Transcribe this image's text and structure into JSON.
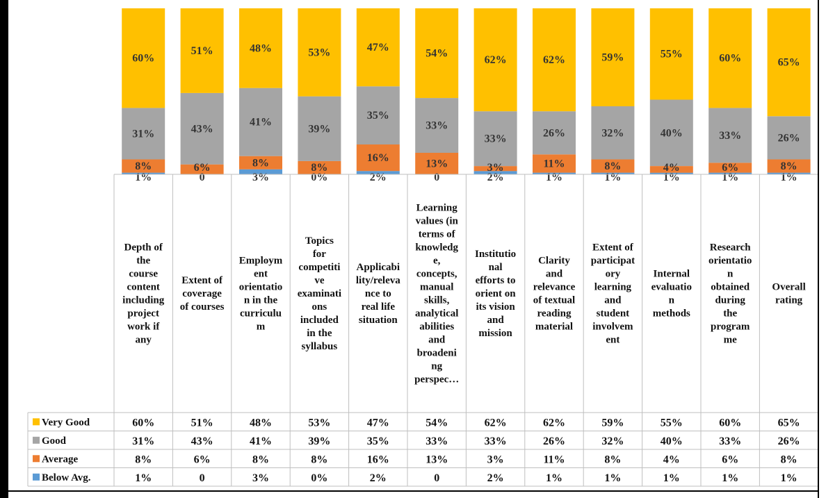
{
  "chart_data": {
    "type": "bar",
    "stacked": true,
    "ylim": [
      0,
      100
    ],
    "grid": false,
    "legend_placement": "data-table",
    "categories": [
      "Depth of the course content including project work if any",
      "Extent of coverage of courses",
      "Employment orientation in the curriculum",
      "Topics for competitive examinations included in the syllabus",
      "Applicability/relevance to real life situation",
      "Learning values (in terms of knowledge, concepts, manual skills, analytical abilities and broadening perspec…",
      "Institutional efforts to orient on its vision and mission",
      "Clarity and relevance of textual reading material",
      "Extent of participatory learning and student involvement",
      "Internal evaluation methods",
      "Research orientation obtained during the programme",
      "Overall rating"
    ],
    "category_lines": [
      [
        "Depth of",
        "the",
        "course",
        "content",
        "including",
        "project",
        "work if",
        "any"
      ],
      [
        "Extent of",
        "coverage",
        "of courses"
      ],
      [
        "Employm",
        "ent",
        "orientatio",
        "n in the",
        "curriculu",
        "m"
      ],
      [
        "Topics",
        "for",
        "competiti",
        "ve",
        "examinati",
        "ons",
        "included",
        "in the",
        "syllabus"
      ],
      [
        "Applicabi",
        "lity/releva",
        "nce to",
        "real life",
        "situation"
      ],
      [
        "Learning",
        "values (in",
        "terms of",
        "knowledg",
        "e,",
        "concepts,",
        "manual",
        "skills,",
        "analytical",
        "abilities",
        "and",
        "broadeni",
        "ng",
        "perspec…"
      ],
      [
        "Institutio",
        "nal",
        "efforts to",
        "orient on",
        "its vision",
        "and",
        "mission"
      ],
      [
        "Clarity",
        "and",
        "relevance",
        "of textual",
        "reading",
        "material"
      ],
      [
        "Extent of",
        "participat",
        "ory",
        "learning",
        "and",
        "student",
        "involvem",
        "ent"
      ],
      [
        "Internal",
        "evaluatio",
        "n",
        "methods"
      ],
      [
        "Research",
        "orientatio",
        "n",
        "obtained",
        "during",
        "the",
        "program",
        "me"
      ],
      [
        "Overall",
        "rating"
      ]
    ],
    "series": [
      {
        "name": "Below Avg.",
        "color": "#5B9BD5",
        "values": [
          1,
          0,
          3,
          0,
          2,
          0,
          2,
          1,
          1,
          1,
          1,
          1
        ],
        "labels": [
          "1%",
          "0",
          "3%",
          "0%",
          "2%",
          "0",
          "2%",
          "1%",
          "1%",
          "1%",
          "1%",
          "1%"
        ]
      },
      {
        "name": "Average",
        "color": "#ED7D31",
        "values": [
          8,
          6,
          8,
          8,
          16,
          13,
          3,
          11,
          8,
          4,
          6,
          8
        ],
        "labels": [
          "8%",
          "6%",
          "8%",
          "8%",
          "16%",
          "13%",
          "3%",
          "11%",
          "8%",
          "4%",
          "6%",
          "8%"
        ]
      },
      {
        "name": "Good",
        "color": "#A5A5A5",
        "values": [
          31,
          43,
          41,
          39,
          35,
          33,
          33,
          26,
          32,
          40,
          33,
          26
        ],
        "labels": [
          "31%",
          "43%",
          "41%",
          "39%",
          "35%",
          "33%",
          "33%",
          "26%",
          "32%",
          "40%",
          "33%",
          "26%"
        ]
      },
      {
        "name": "Very Good",
        "color": "#FFC000",
        "values": [
          60,
          51,
          48,
          53,
          47,
          54,
          62,
          62,
          59,
          55,
          60,
          65
        ],
        "labels": [
          "60%",
          "51%",
          "48%",
          "53%",
          "47%",
          "54%",
          "62%",
          "62%",
          "59%",
          "55%",
          "60%",
          "65%"
        ]
      }
    ],
    "table_row_order": [
      "Very Good",
      "Good",
      "Average",
      "Below Avg."
    ]
  }
}
